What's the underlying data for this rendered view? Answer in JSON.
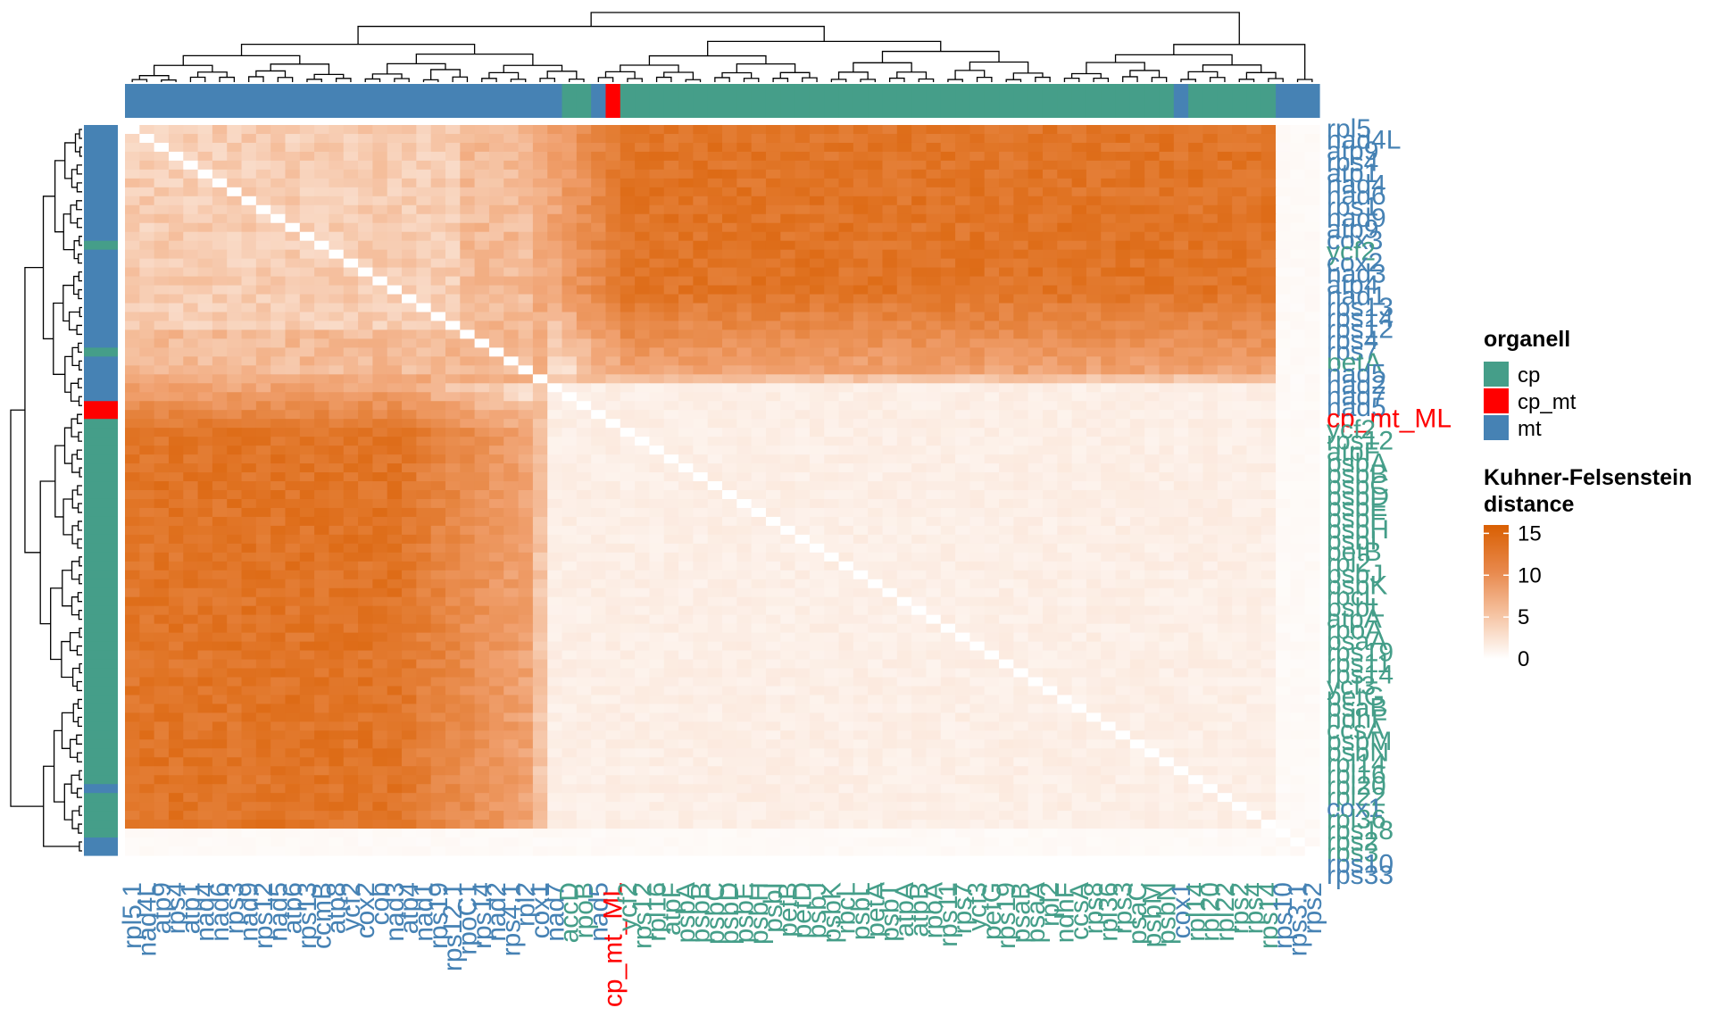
{
  "chart_data": {
    "type": "heatmap",
    "title": "",
    "colors": {
      "cp": "#459E89",
      "cp_mt": "#FF0000",
      "mt": "#4682B4",
      "low": "#FFFFFF",
      "high": "#D95F02"
    },
    "groups": {
      "mt": 28,
      "cp_mt": 1,
      "cp": 50,
      "mt_tail": 3
    },
    "x_labels": [
      {
        "t": "rpl5.1",
        "g": "mt"
      },
      {
        "t": "nad4L",
        "g": "mt"
      },
      {
        "t": "atp9",
        "g": "mt"
      },
      {
        "t": "rps4",
        "g": "mt"
      },
      {
        "t": "atp1",
        "g": "mt"
      },
      {
        "t": "nad4",
        "g": "mt"
      },
      {
        "t": "nad6",
        "g": "mt"
      },
      {
        "t": "rps3",
        "g": "mt"
      },
      {
        "t": "nad9",
        "g": "mt"
      },
      {
        "t": "rps12",
        "g": "mt"
      },
      {
        "t": "nad5",
        "g": "mt"
      },
      {
        "t": "atp6",
        "g": "mt"
      },
      {
        "t": "rps13",
        "g": "mt"
      },
      {
        "t": "ccmB",
        "g": "mt"
      },
      {
        "t": "atp8",
        "g": "mt"
      },
      {
        "t": "ycf2",
        "g": "mt"
      },
      {
        "t": "cox2",
        "g": "mt"
      },
      {
        "t": "cob",
        "g": "mt"
      },
      {
        "t": "nad3",
        "g": "mt"
      },
      {
        "t": "atp4",
        "g": "mt"
      },
      {
        "t": "nad1",
        "g": "mt"
      },
      {
        "t": "rps19",
        "g": "mt"
      },
      {
        "t": "rps12.1",
        "g": "mt"
      },
      {
        "t": "rpoC1",
        "g": "mt"
      },
      {
        "t": "rps14",
        "g": "mt"
      },
      {
        "t": "nad2",
        "g": "mt"
      },
      {
        "t": "rps4.1",
        "g": "mt"
      },
      {
        "t": "rpl2",
        "g": "mt"
      },
      {
        "t": "cox1",
        "g": "mt"
      },
      {
        "t": "nad7",
        "g": "mt"
      },
      {
        "t": "accD",
        "g": "cp"
      },
      {
        "t": "rpoB",
        "g": "cp"
      },
      {
        "t": "nad5",
        "g": "mt"
      },
      {
        "t": "cp_mt_ML",
        "g": "cp_mt"
      },
      {
        "t": "ycf2",
        "g": "cp"
      },
      {
        "t": "rps12",
        "g": "cp"
      },
      {
        "t": "rpl16",
        "g": "cp"
      },
      {
        "t": "atpF",
        "g": "cp"
      },
      {
        "t": "psbA",
        "g": "cp"
      },
      {
        "t": "psbB",
        "g": "cp"
      },
      {
        "t": "psbC",
        "g": "cp"
      },
      {
        "t": "psbD",
        "g": "cp"
      },
      {
        "t": "psbE",
        "g": "cp"
      },
      {
        "t": "psbH",
        "g": "cp"
      },
      {
        "t": "psbI",
        "g": "cp"
      },
      {
        "t": "petB",
        "g": "cp"
      },
      {
        "t": "petD",
        "g": "cp"
      },
      {
        "t": "psbJ",
        "g": "cp"
      },
      {
        "t": "psbK",
        "g": "cp"
      },
      {
        "t": "rbcL",
        "g": "cp"
      },
      {
        "t": "psbL",
        "g": "cp"
      },
      {
        "t": "petA",
        "g": "cp"
      },
      {
        "t": "psbT",
        "g": "cp"
      },
      {
        "t": "atpA",
        "g": "cp"
      },
      {
        "t": "atpB",
        "g": "cp"
      },
      {
        "t": "rpoA",
        "g": "cp"
      },
      {
        "t": "rps11",
        "g": "cp"
      },
      {
        "t": "rps7",
        "g": "cp"
      },
      {
        "t": "ycf3",
        "g": "cp"
      },
      {
        "t": "petG",
        "g": "cp"
      },
      {
        "t": "rps19",
        "g": "cp"
      },
      {
        "t": "psaB",
        "g": "cp"
      },
      {
        "t": "psaA",
        "g": "cp"
      },
      {
        "t": "rpl2",
        "g": "cp"
      },
      {
        "t": "ndhF",
        "g": "cp"
      },
      {
        "t": "ccsA",
        "g": "cp"
      },
      {
        "t": "rps8",
        "g": "cp"
      },
      {
        "t": "rpl36",
        "g": "cp"
      },
      {
        "t": "rps3",
        "g": "cp"
      },
      {
        "t": "psaC",
        "g": "cp"
      },
      {
        "t": "psbM",
        "g": "cp"
      },
      {
        "t": "psbN",
        "g": "cp"
      },
      {
        "t": "cox1",
        "g": "mt"
      },
      {
        "t": "rpl14",
        "g": "cp"
      },
      {
        "t": "rpl20",
        "g": "cp"
      },
      {
        "t": "rpl22",
        "g": "cp"
      },
      {
        "t": "rps2",
        "g": "cp"
      },
      {
        "t": "rps4",
        "g": "cp"
      },
      {
        "t": "rps14",
        "g": "cp"
      },
      {
        "t": "rps10",
        "g": "mt"
      },
      {
        "t": "rps3.1",
        "g": "mt"
      },
      {
        "t": "rps2",
        "g": "mt"
      }
    ],
    "y_labels": [
      {
        "t": "rpl5",
        "g": "mt"
      },
      {
        "t": "nad4L",
        "g": "mt"
      },
      {
        "t": "atp9",
        "g": "mt"
      },
      {
        "t": "rps4",
        "g": "mt"
      },
      {
        "t": "atp1",
        "g": "mt"
      },
      {
        "t": "nad4",
        "g": "mt"
      },
      {
        "t": "nad6",
        "g": "mt"
      },
      {
        "t": "rps1",
        "g": "mt"
      },
      {
        "t": "nad9",
        "g": "mt"
      },
      {
        "t": "atp9",
        "g": "mt"
      },
      {
        "t": "cox3",
        "g": "mt"
      },
      {
        "t": "ycf2",
        "g": "cp"
      },
      {
        "t": "cox2",
        "g": "mt"
      },
      {
        "t": "nad3",
        "g": "mt"
      },
      {
        "t": "atp4",
        "g": "mt"
      },
      {
        "t": "nad1",
        "g": "mt"
      },
      {
        "t": "rps13",
        "g": "mt"
      },
      {
        "t": "rps14",
        "g": "mt"
      },
      {
        "t": "rps12",
        "g": "mt"
      },
      {
        "t": "rps4",
        "g": "mt"
      },
      {
        "t": "rps7",
        "g": "mt"
      },
      {
        "t": "petA",
        "g": "cp"
      },
      {
        "t": "nad5",
        "g": "mt"
      },
      {
        "t": "nad2",
        "g": "mt"
      },
      {
        "t": "nad7",
        "g": "mt"
      },
      {
        "t": "nad5",
        "g": "mt"
      },
      {
        "t": "cp_mt_ML",
        "g": "cp_mt"
      },
      {
        "t": "ycf2",
        "g": "cp"
      },
      {
        "t": "rps12",
        "g": "cp"
      },
      {
        "t": "atpF",
        "g": "cp"
      },
      {
        "t": "psbA",
        "g": "cp"
      },
      {
        "t": "psbB",
        "g": "cp"
      },
      {
        "t": "psbC",
        "g": "cp"
      },
      {
        "t": "psbD",
        "g": "cp"
      },
      {
        "t": "psbE",
        "g": "cp"
      },
      {
        "t": "psbF",
        "g": "cp"
      },
      {
        "t": "psbH",
        "g": "cp"
      },
      {
        "t": "psbI",
        "g": "cp"
      },
      {
        "t": "petB",
        "g": "cp"
      },
      {
        "t": "rpl2",
        "g": "cp"
      },
      {
        "t": "psbJ",
        "g": "cp"
      },
      {
        "t": "psbK",
        "g": "cp"
      },
      {
        "t": "rbcL",
        "g": "cp"
      },
      {
        "t": "psbL",
        "g": "cp"
      },
      {
        "t": "atpA",
        "g": "cp"
      },
      {
        "t": "rpoA",
        "g": "cp"
      },
      {
        "t": "psaA",
        "g": "cp"
      },
      {
        "t": "rps19",
        "g": "cp"
      },
      {
        "t": "rps11",
        "g": "cp"
      },
      {
        "t": "rps14",
        "g": "cp"
      },
      {
        "t": "ycf3",
        "g": "cp"
      },
      {
        "t": "petG",
        "g": "cp"
      },
      {
        "t": "psaB",
        "g": "cp"
      },
      {
        "t": "ndhF",
        "g": "cp"
      },
      {
        "t": "ccsA",
        "g": "cp"
      },
      {
        "t": "psbM",
        "g": "cp"
      },
      {
        "t": "psbN",
        "g": "cp"
      },
      {
        "t": "rpl14",
        "g": "cp"
      },
      {
        "t": "rpl16",
        "g": "cp"
      },
      {
        "t": "rpl20",
        "g": "cp"
      },
      {
        "t": "rpl22",
        "g": "cp"
      },
      {
        "t": "cox1",
        "g": "mt"
      },
      {
        "t": "rpl36",
        "g": "cp"
      },
      {
        "t": "rps18",
        "g": "cp"
      },
      {
        "t": "rps2",
        "g": "cp"
      },
      {
        "t": "rps3",
        "g": "cp"
      },
      {
        "t": "rps10",
        "g": "mt"
      },
      {
        "t": "rps33",
        "g": "mt"
      }
    ],
    "legend": {
      "organell_title": "organell",
      "organell_items": [
        {
          "label": "cp",
          "color": "#459E89"
        },
        {
          "label": "cp_mt",
          "color": "#FF0000"
        },
        {
          "label": "mt",
          "color": "#4682B4"
        }
      ],
      "distance_title_line1": "Kuhner-Felsenstein",
      "distance_title_line2": "distance",
      "scale_ticks": [
        "15",
        "10",
        "5",
        "0"
      ],
      "scale_min": 0,
      "scale_max": 16
    },
    "block_distances": {
      "within_mt": 3,
      "within_cp": 1,
      "mt_vs_cp": 12,
      "mixed_columns": 9,
      "outlier_rows": 0.3
    }
  }
}
